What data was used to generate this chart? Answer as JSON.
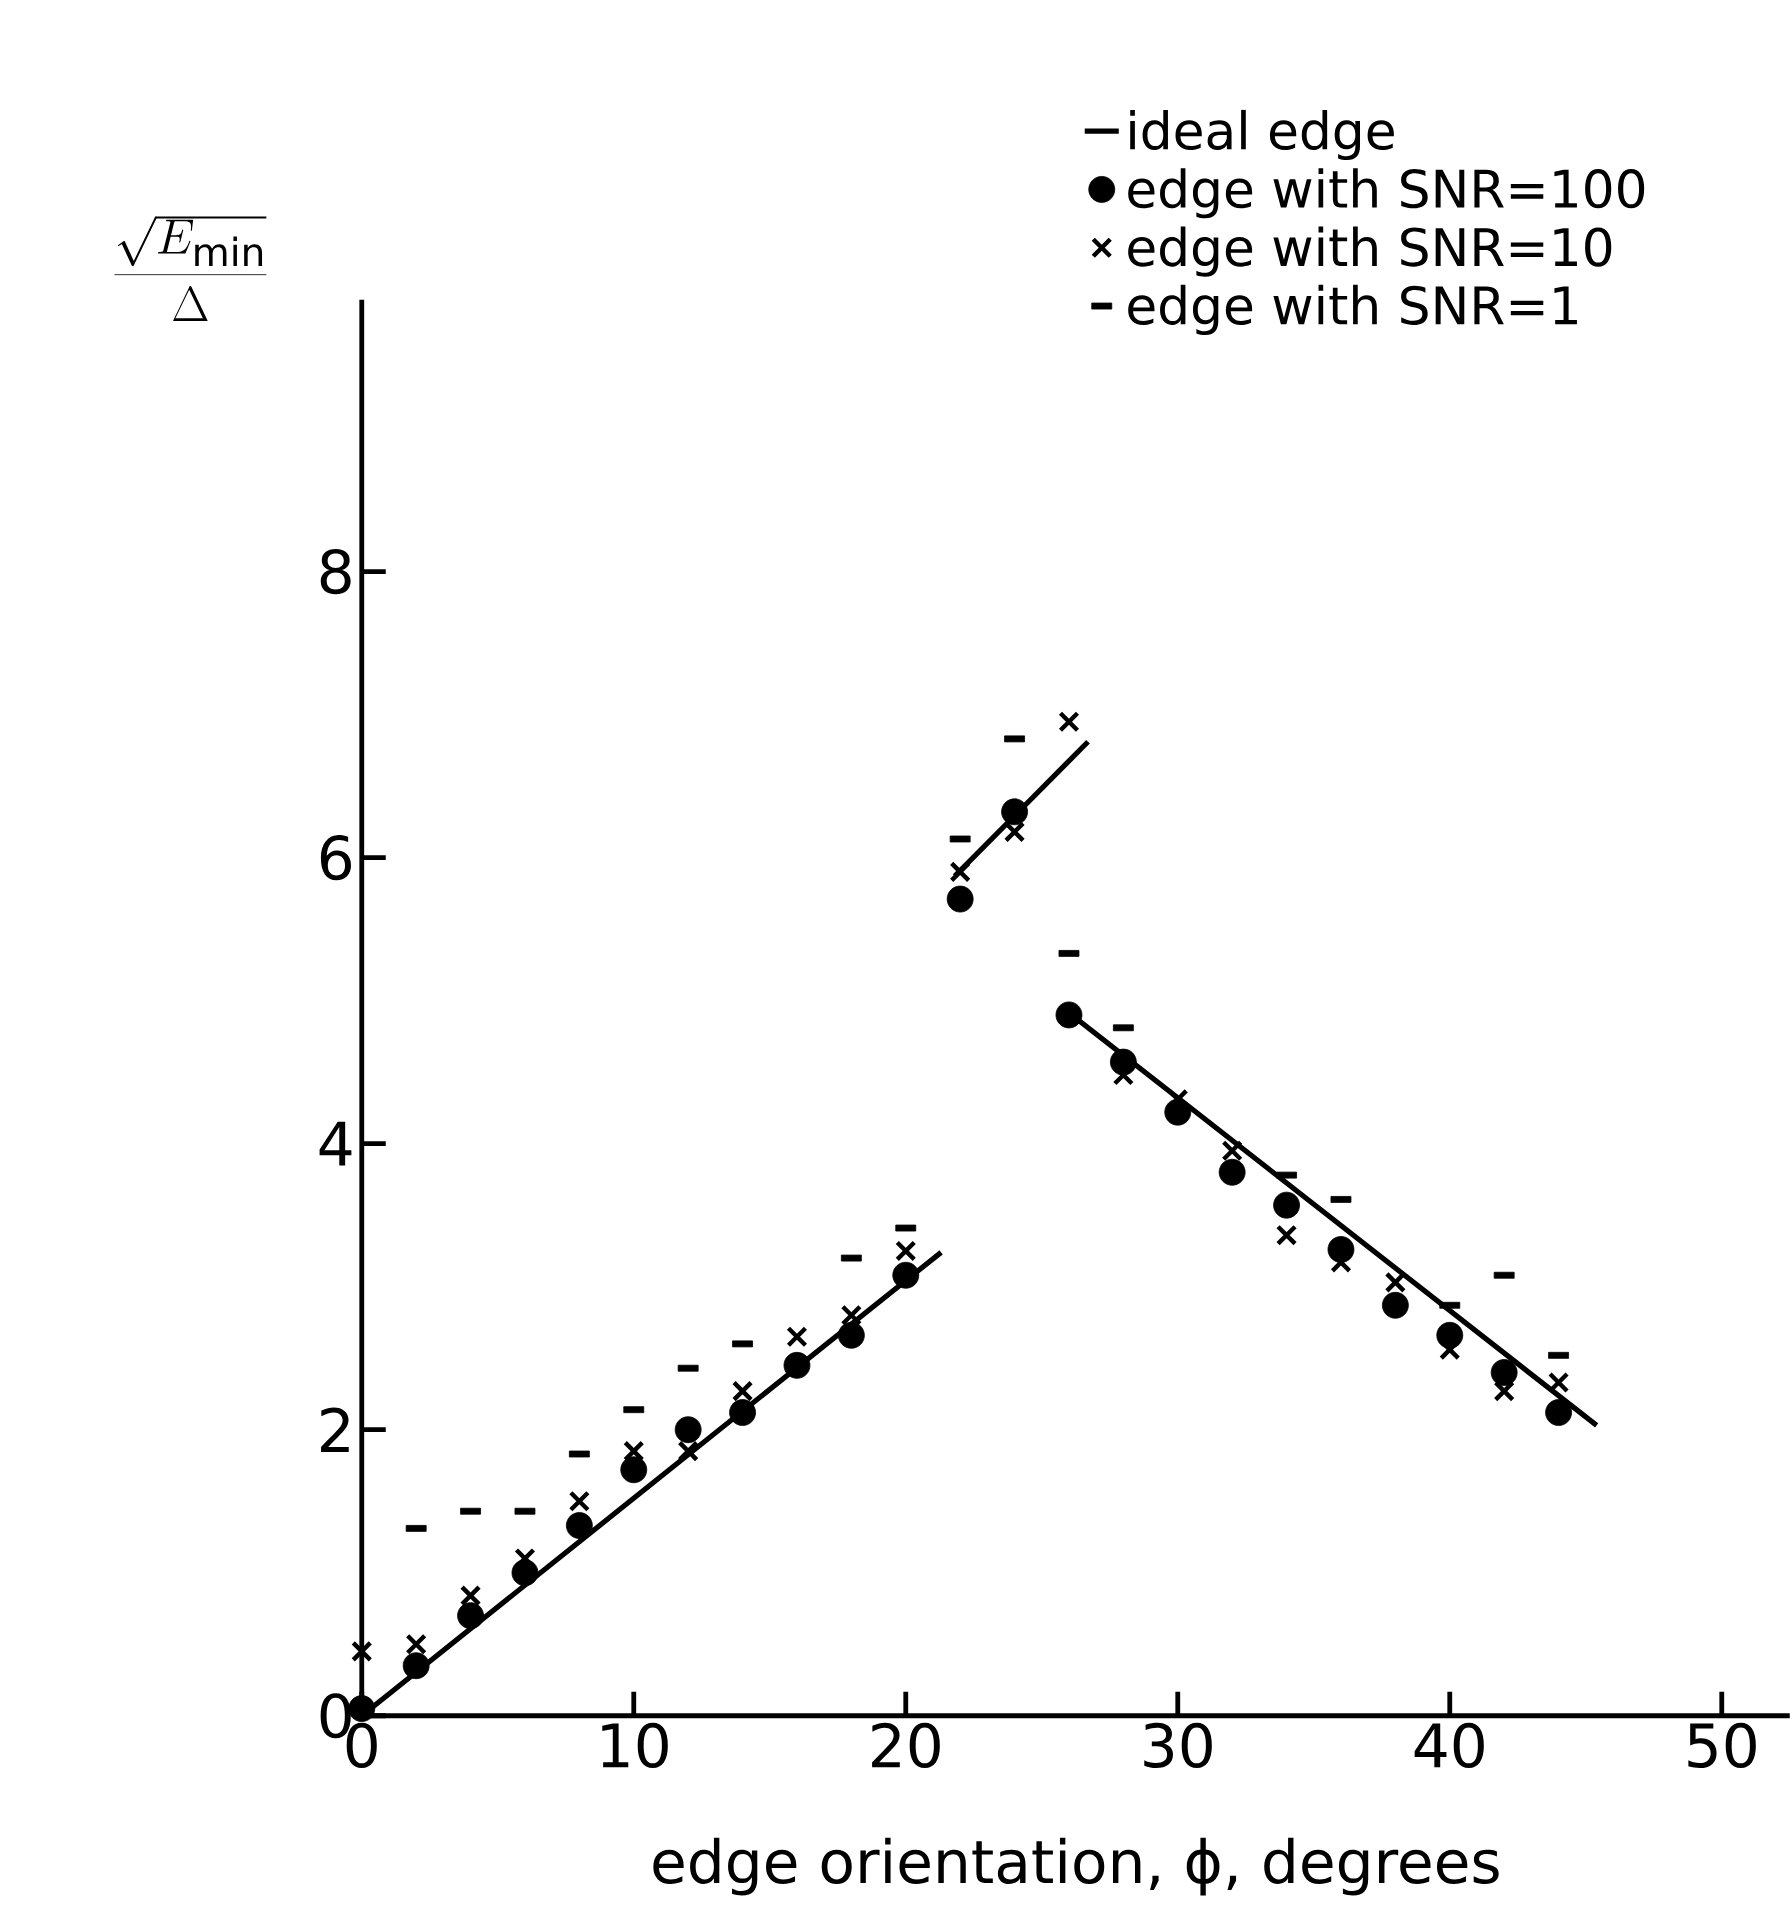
{
  "chart_data": {
    "type": "scatter",
    "xlabel": "edge orientation, ϕ, degrees",
    "ylabel": "\\frac{\\sqrt{E_{\\mathrm{min}}}}{\\Delta}",
    "xlim": [
      0,
      52.5
    ],
    "ylim": [
      0,
      9.9
    ],
    "xticks": [
      0,
      10,
      20,
      30,
      40,
      50
    ],
    "yticks": [
      0,
      2,
      4,
      6,
      8
    ],
    "legend": "top right",
    "grid": false,
    "series": [
      {
        "name": "ideal edge",
        "type": "line",
        "line_style": "solid",
        "marker": "none",
        "color": "#000000",
        "x": [
          0,
          21.3,
          21.5,
          21.8,
          26.7,
          26.4,
          26.1,
          45.4
        ],
        "values": [
          0,
          3.24,
          null,
          5.87,
          6.81,
          null,
          4.9,
          2.03
        ]
      },
      {
        "name": "edge with SNR=100",
        "marker": "circle",
        "color": "#000000",
        "x": [
          0,
          2,
          4,
          6,
          8,
          10,
          12,
          14,
          16,
          18,
          20,
          22,
          24,
          26,
          28,
          30,
          32,
          34,
          36,
          38,
          40,
          42,
          44
        ],
        "values": [
          0.05,
          0.35,
          0.7,
          1.0,
          1.33,
          1.72,
          2.0,
          2.12,
          2.45,
          2.66,
          3.08,
          5.71,
          6.32,
          4.9,
          4.57,
          4.22,
          3.8,
          3.57,
          3.26,
          2.87,
          2.66,
          2.4,
          2.12
        ]
      },
      {
        "name": "edge with SNR=10",
        "marker": "cross",
        "color": "#000000",
        "x": [
          0,
          2,
          4,
          6,
          8,
          10,
          12,
          14,
          16,
          18,
          20,
          22,
          24,
          26,
          28,
          30,
          32,
          34,
          36,
          38,
          40,
          42,
          44
        ],
        "values": [
          0.45,
          0.5,
          0.84,
          1.1,
          1.5,
          1.85,
          1.85,
          2.27,
          2.65,
          2.8,
          3.25,
          5.9,
          6.18,
          6.95,
          4.48,
          4.31,
          3.95,
          3.36,
          3.17,
          3.03,
          2.56,
          2.27,
          2.33
        ]
      },
      {
        "name": "edge with SNR=1",
        "color": "#000000",
        "x": [
          2,
          4,
          6,
          8,
          10,
          12,
          14,
          18,
          20,
          22,
          24,
          26,
          28,
          34,
          36,
          40,
          42,
          44
        ],
        "values": [
          1.31,
          1.43,
          1.43,
          1.83,
          2.14,
          2.43,
          2.6,
          3.2,
          3.41,
          6.13,
          6.83,
          5.33,
          4.81,
          3.78,
          3.61,
          2.87,
          3.08,
          2.52
        ]
      }
    ]
  }
}
